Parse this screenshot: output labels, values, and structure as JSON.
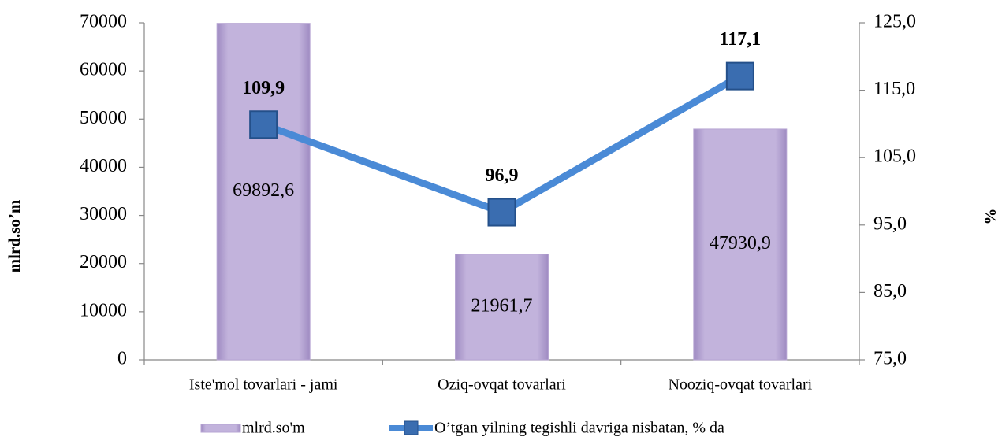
{
  "chart_data": {
    "type": "combo",
    "categories": [
      "Iste'mol tovarlari - jami",
      "Oziq-ovqat tovarlari",
      "Nooziq-ovqat tovarlari"
    ],
    "series": [
      {
        "name": "mlrd.so'm",
        "type": "bar",
        "color": "#b7a5d3",
        "values": [
          69892.6,
          21961.7,
          47930.9
        ],
        "value_labels": [
          "69892,6",
          "21961,7",
          "47930,9"
        ]
      },
      {
        "name": "O’tgan yilning tegishli davriga nisbatan, % da",
        "type": "line",
        "axis": "y2",
        "color": "#4a8ad6",
        "marker_color": "#3a6db0",
        "values": [
          109.9,
          96.9,
          117.1
        ],
        "value_labels": [
          "109,9",
          "96,9",
          "117,1"
        ]
      }
    ],
    "ylabel": "mlrd.so’m",
    "y2label": "%",
    "ylim": [
      0,
      70000
    ],
    "yticks": [
      0,
      10000,
      20000,
      30000,
      40000,
      50000,
      60000,
      70000
    ],
    "y2lim": [
      75,
      125
    ],
    "y2ticks": [
      {
        "value": 75,
        "label": "75,0"
      },
      {
        "value": 85,
        "label": "85,0"
      },
      {
        "value": 95,
        "label": "95,0"
      },
      {
        "value": 105,
        "label": "105,0"
      },
      {
        "value": 115,
        "label": "115,0"
      },
      {
        "value": 125,
        "label": "125,0"
      }
    ],
    "legend": "bottom"
  }
}
